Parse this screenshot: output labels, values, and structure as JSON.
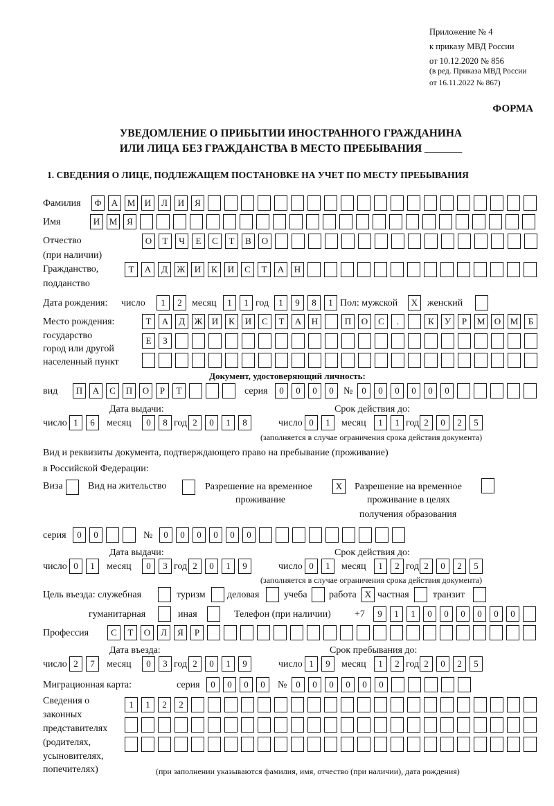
{
  "header": {
    "lines": [
      "Приложение № 4",
      "к приказу МВД России",
      "от 10.12.2020 № 856"
    ],
    "revision": [
      "(в ред. Приказа МВД России",
      "от 16.11.2022 № 867)"
    ],
    "form_label": "ФОРМА"
  },
  "title": {
    "line1": "УВЕДОМЛЕНИЕ О ПРИБЫТИИ ИНОСТРАННОГО ГРАЖДАНИНА",
    "line2": "ИЛИ ЛИЦА БЕЗ ГРАЖДАНСТВА В МЕСТО ПРЕБЫВАНИЯ _______"
  },
  "section1": {
    "heading": "1. СВЕДЕНИЯ О ЛИЦЕ, ПОДЛЕЖАЩЕМ ПОСТАНОВКЕ НА УЧЕТ ПО МЕСТУ ПРЕБЫВАНИЯ",
    "surname": {
      "label": "Фамилия",
      "cells": [
        "Ф",
        "А",
        "М",
        "И",
        "Л",
        "И",
        "Я",
        "",
        "",
        "",
        "",
        "",
        "",
        "",
        "",
        "",
        "",
        "",
        "",
        "",
        "",
        "",
        "",
        "",
        "",
        "",
        ""
      ]
    },
    "name": {
      "label": "Имя",
      "cells": [
        "И",
        "М",
        "Я",
        "",
        "",
        "",
        "",
        "",
        "",
        "",
        "",
        "",
        "",
        "",
        "",
        "",
        "",
        "",
        "",
        "",
        "",
        "",
        "",
        "",
        "",
        "",
        ""
      ]
    },
    "patronymic": {
      "label": "Отчество",
      "label2": "(при наличии)",
      "cells": [
        "О",
        "Т",
        "Ч",
        "Е",
        "С",
        "Т",
        "В",
        "О",
        "",
        "",
        "",
        "",
        "",
        "",
        "",
        "",
        "",
        "",
        "",
        "",
        "",
        "",
        "",
        ""
      ]
    },
    "citizenship": {
      "label": "Гражданство,",
      "label2": "подданство",
      "cells": [
        "Т",
        "А",
        "Д",
        "Ж",
        "И",
        "К",
        "И",
        "С",
        "Т",
        "А",
        "Н",
        "",
        "",
        "",
        "",
        "",
        "",
        "",
        "",
        "",
        "",
        "",
        "",
        "",
        ""
      ]
    },
    "birth_date": {
      "label": "Дата рождения:",
      "day_label": "число",
      "day": [
        "1",
        "2"
      ],
      "month_label": "месяц",
      "month": [
        "1",
        "1"
      ],
      "year_label": "год",
      "year": [
        "1",
        "9",
        "8",
        "1"
      ]
    },
    "sex": {
      "label": "Пол: мужской",
      "male": [
        "X"
      ],
      "female_label": "женский",
      "female": [
        ""
      ]
    },
    "birth_place": {
      "labels": [
        "Место рождения:",
        "государство",
        "город или другой",
        "населенный пункт"
      ],
      "rows": [
        [
          "Т",
          "А",
          "Д",
          "Ж",
          "И",
          "К",
          "И",
          "С",
          "Т",
          "А",
          "Н",
          "",
          "П",
          "О",
          "С",
          ".",
          "",
          "К",
          "У",
          "Р",
          "М",
          "О",
          "М",
          "Б"
        ],
        [
          "Е",
          "З",
          "",
          "",
          "",
          "",
          "",
          "",
          "",
          "",
          "",
          "",
          "",
          "",
          "",
          "",
          "",
          "",
          "",
          "",
          "",
          "",
          "",
          ""
        ],
        [
          "",
          "",
          "",
          "",
          "",
          "",
          "",
          "",
          "",
          "",
          "",
          "",
          "",
          "",
          "",
          "",
          "",
          "",
          "",
          "",
          "",
          "",
          "",
          ""
        ]
      ]
    },
    "id_doc": {
      "heading": "Документ, удостоверяющий личность:",
      "type_label": "вид",
      "type": [
        "П",
        "А",
        "С",
        "П",
        "О",
        "Р",
        "Т",
        "",
        "",
        ""
      ],
      "series_label": "серия",
      "series": [
        "0",
        "0",
        "0",
        "0"
      ],
      "number_label": "№",
      "number": [
        "0",
        "0",
        "0",
        "0",
        "0",
        "0",
        "",
        "",
        "",
        "",
        ""
      ],
      "issue_label": "Дата выдачи:",
      "valid_label": "Срок действия до:",
      "issue": {
        "day": [
          "1",
          "6"
        ],
        "month": [
          "0",
          "8"
        ],
        "year": [
          "2",
          "0",
          "1",
          "8"
        ]
      },
      "valid": {
        "day": [
          "0",
          "1"
        ],
        "month": [
          "1",
          "1"
        ],
        "year": [
          "2",
          "0",
          "2",
          "5"
        ]
      },
      "note": "(заполняется в случае ограничения срока действия документа)"
    },
    "date_labels": {
      "day": "число",
      "month": "месяц",
      "year": "год"
    },
    "stay_doc": {
      "intro1": "Вид и реквизиты документа, подтверждающего право на пребывание (проживание)",
      "intro2": "в Российской Федерации:",
      "visa_label": "Виза",
      "visa": [
        ""
      ],
      "residence_label": "Вид на жительство",
      "residence": [
        ""
      ],
      "trp_label1": "Разрешение на временное",
      "trp_label2": "проживание",
      "trp": [
        "X"
      ],
      "trp_edu_label1": "Разрешение на временное",
      "trp_edu_label2": "проживание в целях",
      "trp_edu_label3": "получения образования",
      "trp_edu": [
        ""
      ],
      "series_label": "серия",
      "series": [
        "0",
        "0",
        "",
        ""
      ],
      "number_label": "№",
      "number": [
        "0",
        "0",
        "0",
        "0",
        "0",
        "0",
        "",
        "",
        "",
        "",
        "",
        "",
        "",
        "",
        ""
      ],
      "issue_label": "Дата выдачи:",
      "valid_label": "Срок действия до:",
      "issue": {
        "day": [
          "0",
          "1"
        ],
        "month": [
          "0",
          "3"
        ],
        "year": [
          "2",
          "0",
          "1",
          "9"
        ]
      },
      "valid": {
        "day": [
          "0",
          "1"
        ],
        "month": [
          "1",
          "2"
        ],
        "year": [
          "2",
          "0",
          "2",
          "5"
        ]
      },
      "note": "(заполняется в случае ограничения срока действия документа)"
    },
    "purpose": {
      "label": "Цель въезда: служебная",
      "official": [
        ""
      ],
      "tourism_label": "туризм",
      "tourism": [
        ""
      ],
      "business_label": "деловая",
      "business": [
        ""
      ],
      "study_label": "учеба",
      "study": [
        ""
      ],
      "work_label": "работа",
      "work": [
        "X"
      ],
      "private_label": "частная",
      "private": [
        ""
      ],
      "transit_label": "транзит",
      "transit": [
        ""
      ],
      "humanitarian_label": "гуманитарная",
      "humanitarian": [
        ""
      ],
      "other_label": "иная",
      "other": [
        ""
      ]
    },
    "phone": {
      "label": "Телефон (при наличии)",
      "prefix": "+7",
      "cells": [
        "9",
        "1",
        "1",
        "0",
        "0",
        "0",
        "0",
        "0",
        "0",
        ""
      ]
    },
    "profession": {
      "label": "Профессия",
      "cells": [
        "С",
        "Т",
        "О",
        "Л",
        "Я",
        "Р",
        "",
        "",
        "",
        "",
        "",
        "",
        "",
        "",
        "",
        "",
        "",
        "",
        "",
        "",
        "",
        "",
        "",
        "",
        "",
        ""
      ]
    },
    "entry": {
      "entry_label": "Дата въезда:",
      "stay_label": "Срок пребывания до:",
      "entry": {
        "day": [
          "2",
          "7"
        ],
        "month": [
          "0",
          "3"
        ],
        "year": [
          "2",
          "0",
          "1",
          "9"
        ]
      },
      "stay": {
        "day": [
          "1",
          "9"
        ],
        "month": [
          "1",
          "2"
        ],
        "year": [
          "2",
          "0",
          "2",
          "5"
        ]
      }
    },
    "migration_card": {
      "label": "Миграционная карта:",
      "series_label": "серия",
      "series": [
        "0",
        "0",
        "0",
        "0"
      ],
      "number_label": "№",
      "number": [
        "0",
        "0",
        "0",
        "0",
        "0",
        "0",
        "",
        "",
        "",
        "",
        ""
      ]
    },
    "representatives": {
      "labels": [
        "Сведения о",
        "законных",
        "представителях",
        "(родителях,",
        "усыновителях,",
        "попечителях)"
      ],
      "rows": [
        [
          "1",
          "1",
          "2",
          "2",
          "",
          "",
          "",
          "",
          "",
          "",
          "",
          "",
          "",
          "",
          "",
          "",
          "",
          "",
          "",
          "",
          "",
          "",
          "",
          "",
          ""
        ],
        [
          "",
          "",
          "",
          "",
          "",
          "",
          "",
          "",
          "",
          "",
          "",
          "",
          "",
          "",
          "",
          "",
          "",
          "",
          "",
          "",
          "",
          "",
          "",
          "",
          ""
        ],
        [
          "",
          "",
          "",
          "",
          "",
          "",
          "",
          "",
          "",
          "",
          "",
          "",
          "",
          "",
          "",
          "",
          "",
          "",
          "",
          "",
          "",
          "",
          "",
          "",
          ""
        ]
      ],
      "note": "(при заполнении указываются фамилия, имя, отчество (при наличии), дата рождения)"
    }
  }
}
